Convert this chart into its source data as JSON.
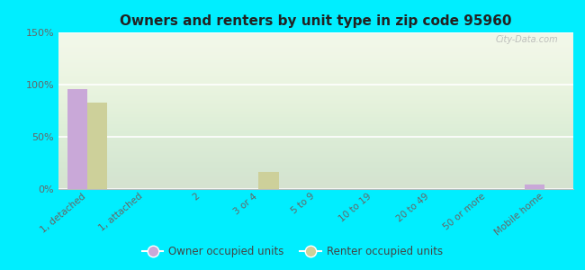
{
  "title": "Owners and renters by unit type in zip code 95960",
  "categories": [
    "1, detached",
    "1, attached",
    "2",
    "3 or 4",
    "5 to 9",
    "10 to 19",
    "20 to 49",
    "50 or more",
    "Mobile home"
  ],
  "owner_values": [
    96,
    0,
    0,
    0,
    0,
    0,
    0,
    0,
    4
  ],
  "renter_values": [
    83,
    0,
    0,
    16,
    0,
    0,
    0,
    0,
    0
  ],
  "owner_color": "#c9a8d8",
  "renter_color": "#cdd09a",
  "background_outer": "#00eeff",
  "ylim": [
    0,
    150
  ],
  "yticks": [
    0,
    50,
    100,
    150
  ],
  "ytick_labels": [
    "0%",
    "50%",
    "100%",
    "150%"
  ],
  "watermark": "City-Data.com",
  "legend_owner": "Owner occupied units",
  "legend_renter": "Renter occupied units",
  "bar_width": 0.35
}
